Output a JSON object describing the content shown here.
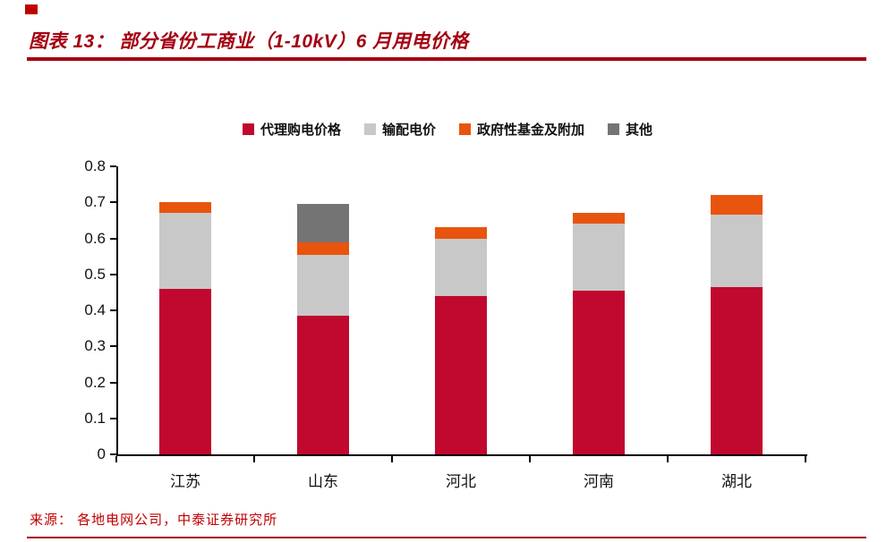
{
  "header": {
    "title": "图表 13：  部分省份工商业（1-10kV）6 月用电价格",
    "accent_color": "#A40011"
  },
  "chart_data": {
    "type": "bar",
    "stacked": true,
    "title": "部分省份工商业（1-10kV）6 月用电价格",
    "categories": [
      "江苏",
      "山东",
      "河北",
      "河南",
      "湖北"
    ],
    "series": [
      {
        "name": "代理购电价格",
        "color": "#C1082E",
        "values": [
          0.46,
          0.385,
          0.44,
          0.455,
          0.465
        ]
      },
      {
        "name": "输配电价",
        "color": "#C8C8C8",
        "values": [
          0.21,
          0.17,
          0.16,
          0.185,
          0.2
        ]
      },
      {
        "name": "政府性基金及附加",
        "color": "#E8540E",
        "values": [
          0.03,
          0.035,
          0.03,
          0.03,
          0.055
        ]
      },
      {
        "name": "其他",
        "color": "#747474",
        "values": [
          0,
          0.105,
          0,
          0,
          0
        ]
      }
    ],
    "totals": [
      0.7,
      0.695,
      0.63,
      0.67,
      0.72
    ],
    "xlabel": "",
    "ylabel": "",
    "ylim": [
      0,
      0.8
    ],
    "yticks": [
      0,
      0.1,
      0.2,
      0.3,
      0.4,
      0.5,
      0.6,
      0.7,
      0.8
    ],
    "legend_position": "top",
    "grid": false
  },
  "footer": {
    "source": "来源： 各地电网公司，中泰证券研究所"
  }
}
